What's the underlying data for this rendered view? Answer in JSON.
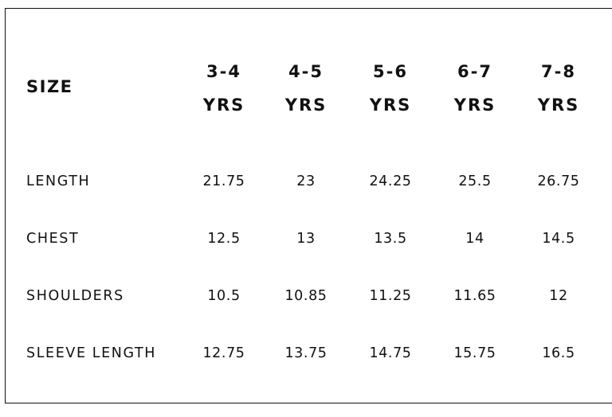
{
  "table": {
    "size_label": "SIZE",
    "columns": [
      {
        "top": "3-4",
        "bottom": "YRS"
      },
      {
        "top": "4-5",
        "bottom": "YRS"
      },
      {
        "top": "5-6",
        "bottom": "YRS"
      },
      {
        "top": "6-7",
        "bottom": "YRS"
      },
      {
        "top": "7-8",
        "bottom": "YRS"
      }
    ],
    "rows": [
      {
        "label": "LENGTH",
        "values": [
          "21.75",
          "23",
          "24.25",
          "25.5",
          "26.75"
        ]
      },
      {
        "label": "CHEST",
        "values": [
          "12.5",
          "13",
          "13.5",
          "14",
          "14.5"
        ]
      },
      {
        "label": "SHOULDERS",
        "values": [
          "10.5",
          "10.85",
          "11.25",
          "11.65",
          "12"
        ]
      },
      {
        "label": "SLEEVE LENGTH",
        "values": [
          "12.75",
          "13.75",
          "14.75",
          "15.75",
          "16.5"
        ]
      }
    ]
  }
}
